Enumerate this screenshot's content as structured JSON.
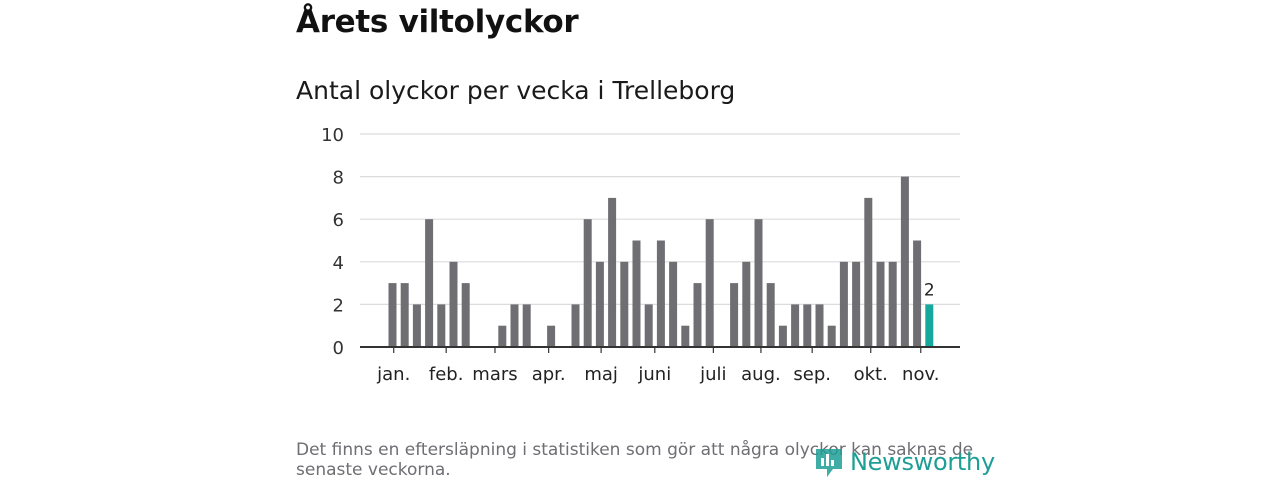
{
  "header": {
    "title": "Årets viltolyckor",
    "subtitle": "Antal olyckor per vecka i Trelleborg"
  },
  "chart_data": {
    "type": "bar",
    "title": "Antal olyckor per vecka i Trelleborg",
    "xlabel": "",
    "ylabel": "",
    "ylim": [
      0,
      10
    ],
    "yticks": [
      0,
      2,
      4,
      6,
      8,
      10
    ],
    "grid": true,
    "week_start": 1,
    "week_end": 45,
    "values": [
      3,
      3,
      2,
      6,
      2,
      4,
      3,
      null,
      null,
      1,
      2,
      2,
      null,
      1,
      null,
      2,
      6,
      4,
      7,
      4,
      5,
      2,
      5,
      4,
      1,
      3,
      6,
      null,
      3,
      4,
      6,
      3,
      1,
      2,
      2,
      2,
      1,
      4,
      4,
      7,
      4,
      4,
      8,
      5,
      2
    ],
    "highlight_last": true,
    "last_value_label": "2",
    "colors": {
      "bar": "#6f6e73",
      "highlight": "#16a79d",
      "grid": "#dcdcdc",
      "axis": "#333333"
    },
    "month_labels": [
      {
        "label": "jan.",
        "week": 1.1
      },
      {
        "label": "feb.",
        "week": 5.4
      },
      {
        "label": "mars",
        "week": 9.4
      },
      {
        "label": "apr.",
        "week": 13.8
      },
      {
        "label": "maj",
        "week": 18.1
      },
      {
        "label": "juni",
        "week": 22.5
      },
      {
        "label": "juli",
        "week": 27.3
      },
      {
        "label": "aug.",
        "week": 31.2
      },
      {
        "label": "sep.",
        "week": 35.4
      },
      {
        "label": "okt.",
        "week": 40.2
      },
      {
        "label": "nov.",
        "week": 44.3
      }
    ]
  },
  "footer": {
    "note": "Det finns en eftersläpning i statistiken som gör att några olyckor kan saknas de senaste veckorna.",
    "brand": "Newsworthy",
    "brand_color": "#1f9e96"
  }
}
